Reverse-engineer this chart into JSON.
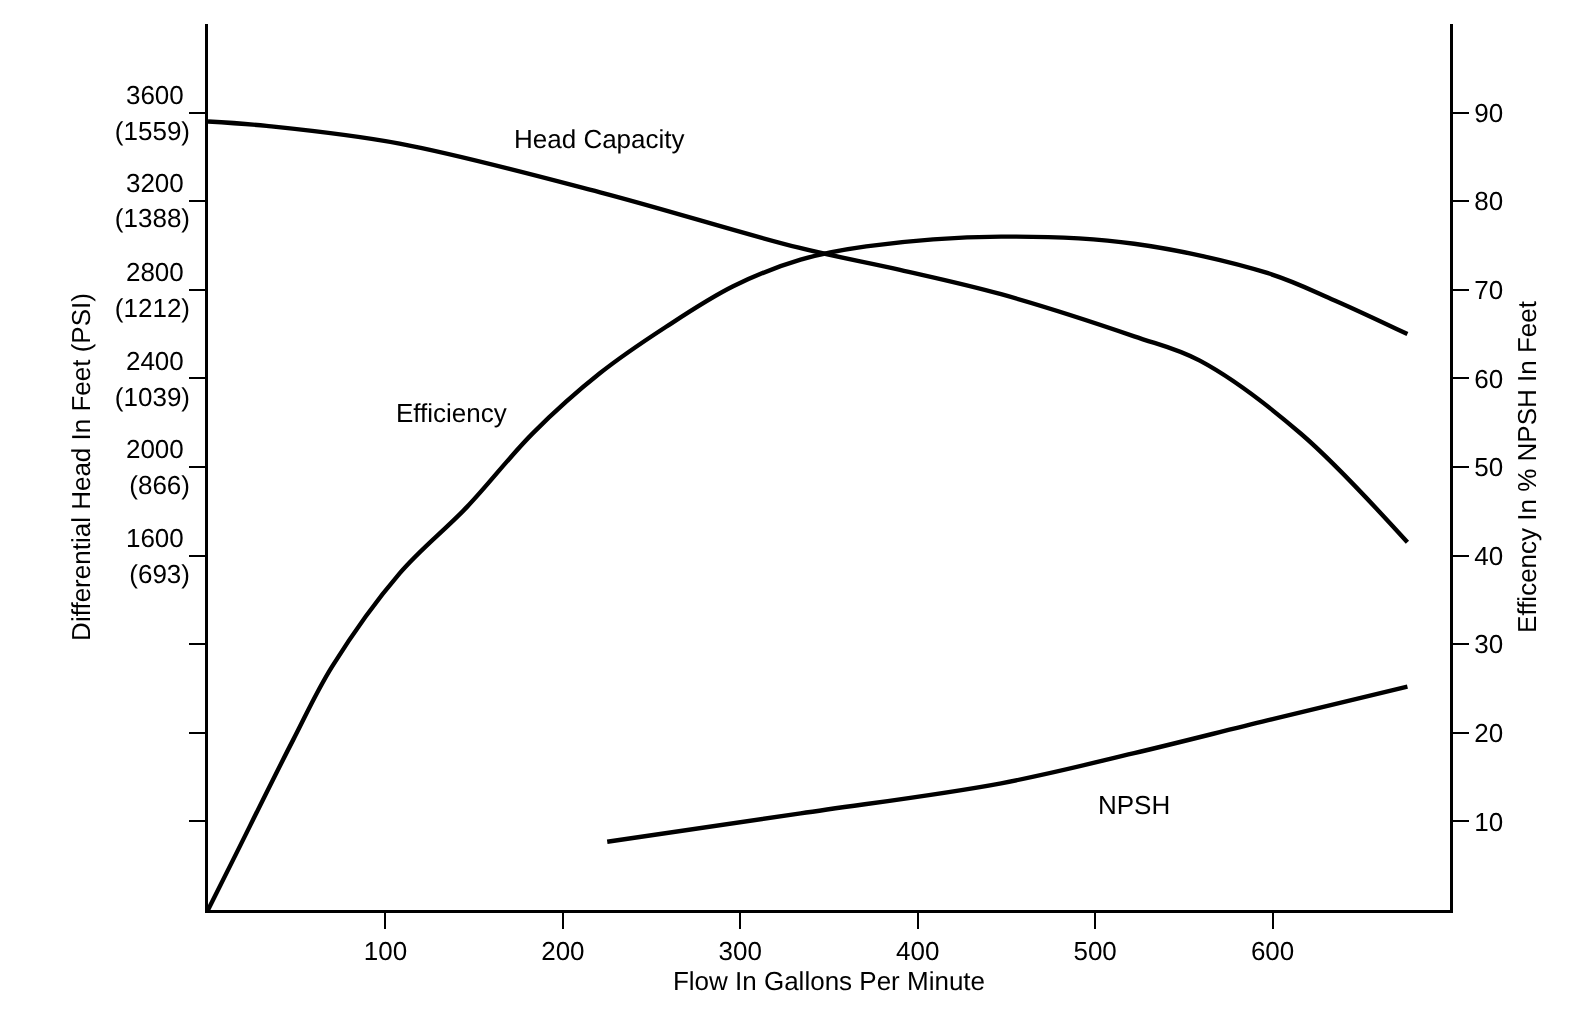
{
  "chart_data": {
    "type": "line",
    "xlabel": "Flow In Gallons Per Minute",
    "ylabel": "Differential Head In Feet (PSI)",
    "y2label": "Efficency In % NPSH In Feet",
    "xlim": [
      0,
      700
    ],
    "xticks": [
      100,
      200,
      300,
      400,
      500,
      600
    ],
    "ylim": [
      0,
      4000
    ],
    "yticks": [
      {
        "value": 400,
        "label": null
      },
      {
        "value": 800,
        "label": null
      },
      {
        "value": 1200,
        "label": null
      },
      1600,
      2000,
      2400,
      2800,
      3200,
      3600
    ],
    "y3lim": [
      0,
      1732
    ],
    "y3ticks": [
      {
        "value": 693,
        "label": "(693)"
      },
      {
        "value": 866,
        "label": "(866)"
      },
      {
        "value": 1039,
        "label": "(1039)"
      },
      {
        "value": 1212,
        "label": "(1212)"
      },
      {
        "value": 1388,
        "label": "(1388)"
      },
      {
        "value": 1559,
        "label": "(1559)"
      }
    ],
    "y2lim": [
      0,
      100
    ],
    "y2ticks": [
      10,
      20,
      30,
      40,
      50,
      60,
      70,
      80,
      90
    ],
    "grid": false,
    "legend": false,
    "marker": "none",
    "line_style": "solid",
    "series": [
      {
        "name": "Head Capacity",
        "color": "#000000",
        "x": [
          0,
          33,
          108,
          221,
          333,
          390,
          447,
          522,
          559,
          616,
          676
        ],
        "values": [
          3560,
          3540,
          3460,
          3240,
          2990,
          2890,
          2780,
          2590,
          2480,
          2150,
          1660
        ]
      },
      {
        "name": "Efficiency",
        "color": "#000000",
        "axis": "y2",
        "x": [
          0,
          14,
          48,
          70,
          108,
          146,
          183,
          221,
          258,
          296,
          334,
          371,
          447,
          522,
          597,
          635,
          676
        ],
        "values": [
          0,
          5.6,
          19.2,
          27.5,
          38,
          45.5,
          53.8,
          60.6,
          65.8,
          70.4,
          73.4,
          74.9,
          76,
          75.2,
          71.9,
          68.8,
          65
        ]
      },
      {
        "name": "NPSH",
        "color": "#000000",
        "axis": "y2",
        "x": [
          225,
          334,
          447,
          522,
          597,
          676
        ],
        "values": [
          7.7,
          10.9,
          14.3,
          17.7,
          21.4,
          25.2
        ]
      }
    ]
  }
}
